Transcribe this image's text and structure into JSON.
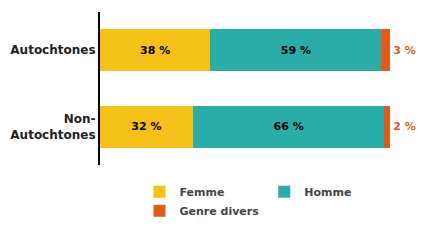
{
  "chart_data": {
    "type": "bar",
    "orientation": "horizontal",
    "stacked": true,
    "categories": [
      "Autochtones",
      "Non-\nAutochtones"
    ],
    "series": [
      {
        "name": "Femme",
        "color": "#F5C118",
        "values": [
          38,
          32
        ],
        "value_labels": [
          "38 %",
          "32 %"
        ]
      },
      {
        "name": "Homme",
        "color": "#2AADA8",
        "values": [
          59,
          66
        ],
        "value_labels": [
          "59 %",
          "66 %"
        ]
      },
      {
        "name": "Genre divers",
        "color": "#E05A1A",
        "values": [
          3,
          2
        ],
        "value_labels": [
          "3 %",
          "2 %"
        ]
      }
    ],
    "xlim": [
      0,
      102
    ],
    "data_labels": true,
    "tick_labels": "y",
    "grid": false,
    "legend": "bottom"
  }
}
